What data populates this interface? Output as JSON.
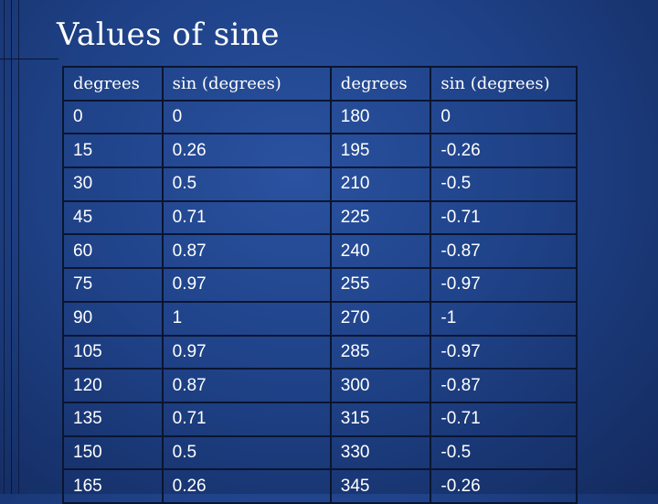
{
  "slide": {
    "title": "Values of sine"
  },
  "table": {
    "headers": [
      "degrees",
      "sin (degrees)",
      "degrees",
      "sin (degrees)"
    ],
    "rows": [
      [
        "0",
        "0",
        "180",
        "0"
      ],
      [
        "15",
        "0.26",
        "195",
        "-0.26"
      ],
      [
        "30",
        "0.5",
        "210",
        "-0.5"
      ],
      [
        "45",
        "0.71",
        "225",
        "-0.71"
      ],
      [
        "60",
        "0.87",
        "240",
        "-0.87"
      ],
      [
        "75",
        "0.97",
        "255",
        "-0.97"
      ],
      [
        "90",
        "1",
        "270",
        "-1"
      ],
      [
        "105",
        "0.97",
        "285",
        "-0.97"
      ],
      [
        "120",
        "0.87",
        "300",
        "-0.87"
      ],
      [
        "135",
        "0.71",
        "315",
        "-0.71"
      ],
      [
        "150",
        "0.5",
        "330",
        "-0.5"
      ],
      [
        "165",
        "0.26",
        "345",
        "-0.26"
      ]
    ]
  },
  "colors": {
    "background": "#1f4288",
    "text": "#ffffff",
    "grid": "#0b1530"
  }
}
